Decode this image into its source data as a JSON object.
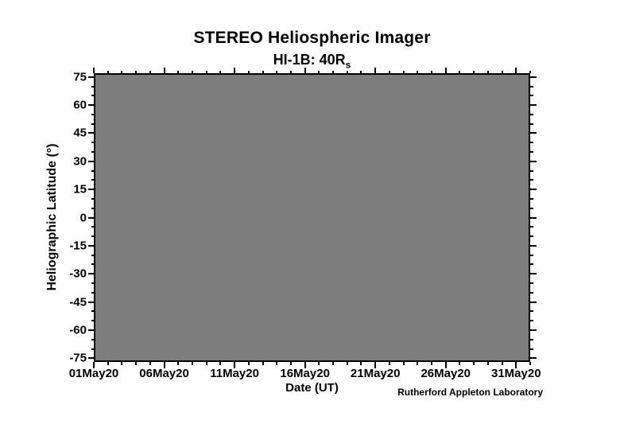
{
  "header": {
    "title": "STEREO Heliospheric Imager",
    "subtitle_text": "HI-1B: 40R",
    "subtitle_subscript": "s"
  },
  "footer": {
    "credit": "Rutherford Appleton Laboratory"
  },
  "colors": {
    "background": "#ffffff",
    "plot_area_fill": "#7d7d7d",
    "axis": "#000000",
    "text": "#000000"
  },
  "chart_data": {
    "type": "heatmap",
    "title": "STEREO Heliospheric Imager",
    "subtitle": "HI-1B: 40R_s",
    "xlabel": "Date (UT)",
    "ylabel": "Heliographic Latitude (°)",
    "x_tick_labels": [
      "01May20",
      "06May20",
      "11May20",
      "16May20",
      "21May20",
      "26May20",
      "31May20"
    ],
    "x_tick_positions_days": [
      0,
      5,
      10,
      15,
      20,
      25,
      30
    ],
    "x_range_days": [
      0,
      31
    ],
    "x_minor_tick_interval_days": 1,
    "y_tick_values": [
      75,
      60,
      45,
      30,
      15,
      0,
      -15,
      -30,
      -45,
      -60,
      -75
    ],
    "y_minor_tick_interval_deg": 5,
    "ylim": [
      -77,
      77
    ],
    "grid": false,
    "legend": null,
    "tick_direction": "outward",
    "plot_area_fill": "#7d7d7d",
    "series": [],
    "note": "Plot area is uniformly gray; no data points, curves or tracks are rendered in the image."
  }
}
